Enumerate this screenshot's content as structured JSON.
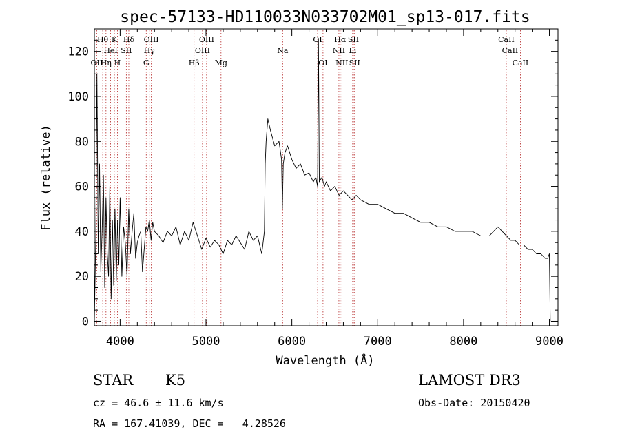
{
  "chart_data": {
    "type": "line",
    "title": "spec-57133-HD110033N033702M01_sp13-017.fits",
    "xlabel": "Wavelength (Å)",
    "ylabel": "Flux (relative)",
    "xlim": [
      3700,
      9100
    ],
    "ylim": [
      -2,
      130
    ],
    "xticks": [
      4000,
      5000,
      6000,
      7000,
      8000,
      9000
    ],
    "xtick_labels": [
      "4000",
      "5000",
      "6000",
      "7000",
      "8000",
      "9000"
    ],
    "yticks": [
      0,
      20,
      40,
      60,
      80,
      100,
      120
    ],
    "ytick_labels": [
      "0",
      "20",
      "40",
      "60",
      "80",
      "100",
      "120"
    ],
    "series": [
      {
        "name": "flux",
        "x": [
          3700,
          3715,
          3730,
          3745,
          3760,
          3775,
          3790,
          3805,
          3820,
          3835,
          3850,
          3865,
          3880,
          3895,
          3910,
          3925,
          3940,
          3955,
          3970,
          3985,
          4000,
          4020,
          4040,
          4060,
          4080,
          4100,
          4120,
          4140,
          4160,
          4180,
          4200,
          4220,
          4240,
          4260,
          4280,
          4300,
          4320,
          4340,
          4360,
          4380,
          4400,
          4450,
          4500,
          4550,
          4600,
          4650,
          4700,
          4750,
          4800,
          4850,
          4900,
          4950,
          5000,
          5050,
          5100,
          5150,
          5200,
          5250,
          5300,
          5350,
          5400,
          5450,
          5500,
          5550,
          5600,
          5650,
          5680,
          5690,
          5700,
          5720,
          5750,
          5800,
          5850,
          5880,
          5890,
          5900,
          5920,
          5950,
          6000,
          6050,
          6100,
          6150,
          6200,
          6250,
          6280,
          6300,
          6310,
          6320,
          6350,
          6380,
          6400,
          6450,
          6500,
          6550,
          6600,
          6650,
          6700,
          6750,
          6800,
          6900,
          7000,
          7100,
          7200,
          7300,
          7400,
          7500,
          7600,
          7700,
          7800,
          7900,
          8000,
          8100,
          8200,
          8300,
          8400,
          8500,
          8550,
          8600,
          8650,
          8700,
          8750,
          8800,
          8850,
          8900,
          8950,
          8980,
          9000,
          9010
        ],
        "y": [
          0,
          35,
          110,
          30,
          70,
          22,
          40,
          65,
          15,
          55,
          30,
          20,
          60,
          10,
          45,
          16,
          50,
          18,
          45,
          25,
          55,
          20,
          42,
          35,
          20,
          50,
          30,
          40,
          48,
          28,
          35,
          38,
          40,
          22,
          32,
          42,
          40,
          45,
          36,
          44,
          40,
          38,
          35,
          40,
          38,
          42,
          34,
          40,
          36,
          44,
          38,
          32,
          37,
          33,
          36,
          34,
          30,
          36,
          34,
          38,
          35,
          32,
          40,
          36,
          38,
          30,
          40,
          70,
          80,
          90,
          85,
          78,
          80,
          72,
          50,
          70,
          75,
          78,
          72,
          68,
          70,
          65,
          66,
          62,
          64,
          60,
          125,
          62,
          64,
          60,
          62,
          58,
          60,
          56,
          58,
          56,
          54,
          56,
          54,
          52,
          52,
          50,
          48,
          48,
          46,
          44,
          44,
          42,
          42,
          40,
          40,
          40,
          38,
          38,
          42,
          38,
          36,
          36,
          34,
          34,
          32,
          32,
          30,
          30,
          28,
          28,
          30,
          0
        ]
      }
    ],
    "spectral_lines": [
      {
        "name": "Hθ",
        "wave": 3797,
        "row": 1
      },
      {
        "name": "OII",
        "wave": 3727,
        "row": 3
      },
      {
        "name": "Hη",
        "wave": 3835,
        "row": 3
      },
      {
        "name": "HeI",
        "wave": 3889,
        "row": 2
      },
      {
        "name": "K",
        "wave": 3933,
        "row": 1
      },
      {
        "name": "SII",
        "wave": 4072,
        "row": 2
      },
      {
        "name": "H",
        "wave": 3968,
        "row": 3
      },
      {
        "name": "Hδ",
        "wave": 4101,
        "row": 1
      },
      {
        "name": "OIII",
        "wave": 4363,
        "row": 1
      },
      {
        "name": "Hγ",
        "wave": 4340,
        "row": 2
      },
      {
        "name": "G",
        "wave": 4304,
        "row": 3
      },
      {
        "name": "Hβ",
        "wave": 4861,
        "row": 3
      },
      {
        "name": "OIII",
        "wave": 5007,
        "row": 1
      },
      {
        "name": "OIII",
        "wave": 4959,
        "row": 2
      },
      {
        "name": "Mg",
        "wave": 5175,
        "row": 3
      },
      {
        "name": "Na",
        "wave": 5893,
        "row": 2
      },
      {
        "name": "OI",
        "wave": 6300,
        "row": 1
      },
      {
        "name": "OI",
        "wave": 6363,
        "row": 3
      },
      {
        "name": "Hα",
        "wave": 6563,
        "row": 1
      },
      {
        "name": "NII",
        "wave": 6548,
        "row": 2
      },
      {
        "name": "NII",
        "wave": 6583,
        "row": 3
      },
      {
        "name": "SII",
        "wave": 6717,
        "row": 1
      },
      {
        "name": "Li",
        "wave": 6708,
        "row": 2
      },
      {
        "name": "SII",
        "wave": 6731,
        "row": 3
      },
      {
        "name": "CaII",
        "wave": 8498,
        "row": 1
      },
      {
        "name": "CaII",
        "wave": 8542,
        "row": 2
      },
      {
        "name": "CaII",
        "wave": 8662,
        "row": 3
      }
    ]
  },
  "info": {
    "class": "STAR",
    "subclass": "K5",
    "survey": "LAMOST DR3",
    "cz": "cz = 46.6 ± 11.6 km/s",
    "obs_date": "Obs-Date: 20150420",
    "radec": "RA = 167.41039, DEC =   4.28526"
  }
}
